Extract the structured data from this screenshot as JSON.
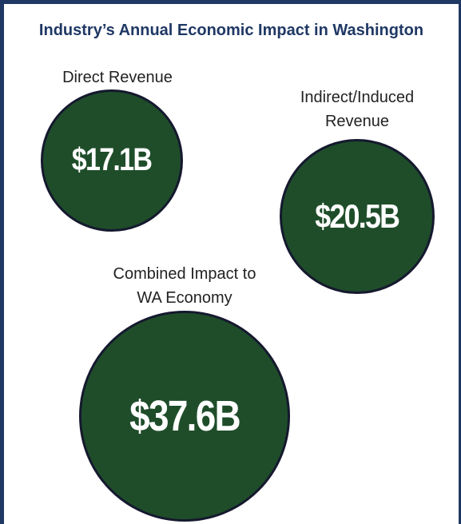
{
  "chart_data": {
    "type": "bubble",
    "title": "Industry’s Annual Economic Impact in Washington",
    "categories": [
      "Direct Revenue",
      "Indirect/Induced Revenue",
      "Combined Impact to WA Economy"
    ],
    "values": [
      17.1,
      20.5,
      37.6
    ],
    "value_labels": [
      "$17.1B",
      "$20.5B",
      "$37.6B"
    ],
    "color": "#1f4d2a"
  }
}
